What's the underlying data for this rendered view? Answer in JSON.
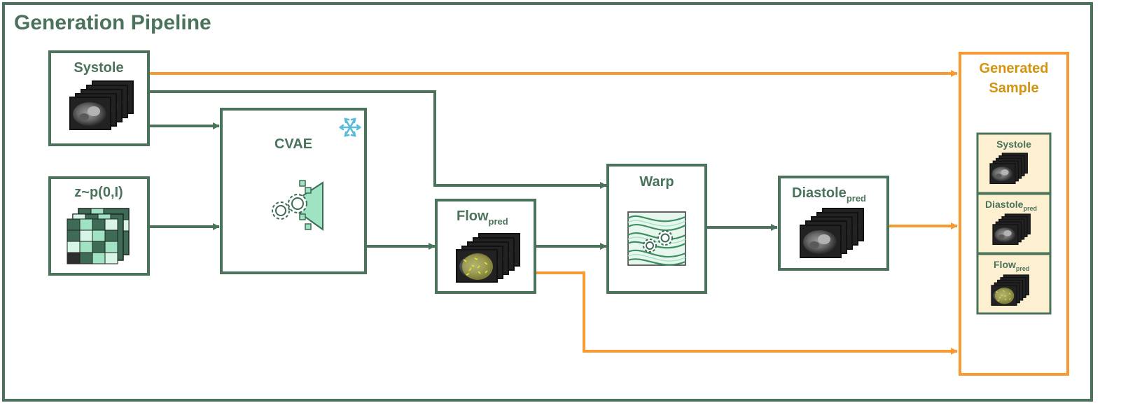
{
  "title": "Generation Pipeline",
  "colors": {
    "green": "#4b735c",
    "orange": "#f79a33",
    "orange_text": "#d4940f",
    "mint": "#9fe3c2",
    "mint_light": "#d6f5e6",
    "dark_green": "#3d6b55",
    "sample_bg": "#fdf0d0",
    "snowflake": "#5bbbd9"
  },
  "nodes": {
    "systole": {
      "label": "Systole"
    },
    "noise": {
      "label": "z~p(0,I)"
    },
    "cvae": {
      "label": "CVAE",
      "badge_icon": "snowflake-icon"
    },
    "flow": {
      "label": "Flow",
      "sub": "pred"
    },
    "warp": {
      "label": "Warp"
    },
    "diastole": {
      "label": "Diastole",
      "sub": "pred"
    }
  },
  "generated_sample": {
    "label_line1": "Generated",
    "label_line2": "Sample",
    "items": [
      {
        "label": "Systole",
        "sub": ""
      },
      {
        "label": "Diastole",
        "sub": "pred"
      },
      {
        "label": "Flow",
        "sub": "pred"
      }
    ]
  },
  "arrows": [
    {
      "from": "systole",
      "to": "generated_sample",
      "color": "orange"
    },
    {
      "from": "systole",
      "to": "warp",
      "color": "green"
    },
    {
      "from": "systole",
      "to": "cvae",
      "color": "green"
    },
    {
      "from": "noise",
      "to": "cvae",
      "color": "green"
    },
    {
      "from": "cvae",
      "to": "flow",
      "color": "green"
    },
    {
      "from": "flow",
      "to": "warp",
      "color": "green"
    },
    {
      "from": "warp",
      "to": "diastole",
      "color": "green"
    },
    {
      "from": "diastole",
      "to": "generated_sample",
      "color": "orange"
    },
    {
      "from": "flow",
      "to": "generated_sample",
      "color": "orange"
    }
  ]
}
